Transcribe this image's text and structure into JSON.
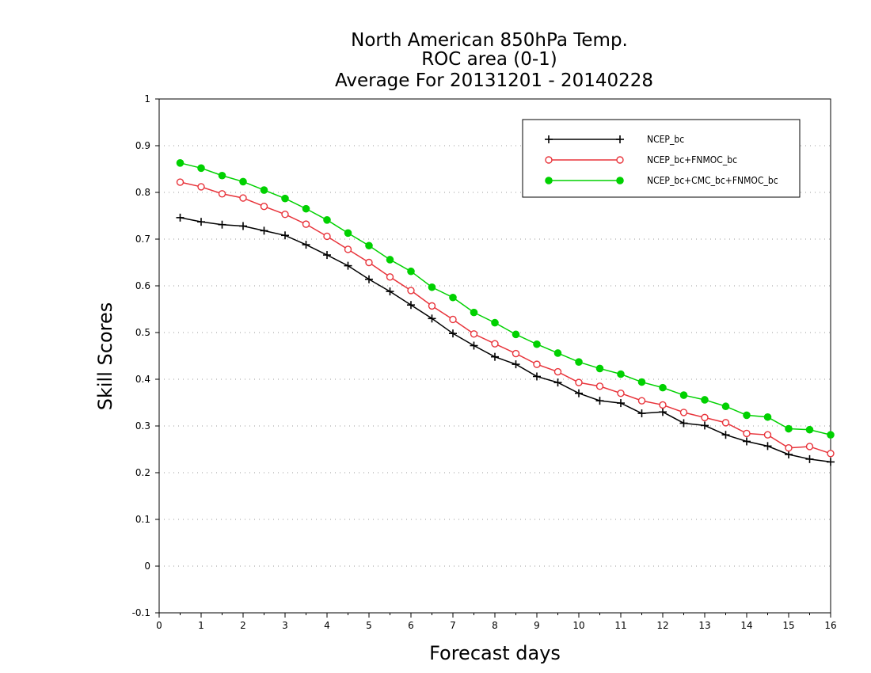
{
  "chart_data": {
    "type": "line",
    "title_lines": [
      "North American 850hPa Temp.",
      "ROC area (0-1)",
      "Average For 20131201 - 20140228"
    ],
    "xlabel": "Forecast days",
    "ylabel": "Skill Scores",
    "xlim": [
      0,
      16
    ],
    "ylim": [
      -0.1,
      1
    ],
    "x_ticks": [
      0,
      1,
      2,
      3,
      4,
      5,
      6,
      7,
      8,
      9,
      10,
      11,
      12,
      13,
      14,
      15,
      16
    ],
    "x_tick_labels": [
      "0",
      "1",
      "2",
      "3",
      "4",
      "5",
      "6",
      "7",
      "8",
      "9",
      "10",
      "11",
      "12",
      "13",
      "14",
      "15",
      "16"
    ],
    "y_ticks": [
      -0.1,
      0,
      0.1,
      0.2,
      0.3,
      0.4,
      0.5,
      0.6,
      0.7,
      0.8,
      0.9,
      1
    ],
    "y_tick_labels": [
      "-0.1",
      "0",
      "0.1",
      "0.2",
      "0.3",
      "0.4",
      "0.5",
      "0.6",
      "0.7",
      "0.8",
      "0.9",
      "1"
    ],
    "grid": "horizontal dotted",
    "legend_position": "top-right",
    "x": [
      0.5,
      1.0,
      1.5,
      2.0,
      2.5,
      3.0,
      3.5,
      4.0,
      4.5,
      5.0,
      5.5,
      6.0,
      6.5,
      7.0,
      7.5,
      8.0,
      8.5,
      9.0,
      9.5,
      10.0,
      10.5,
      11.0,
      11.5,
      12.0,
      12.5,
      13.0,
      13.5,
      14.0,
      14.5,
      15.0,
      15.5,
      16.0
    ],
    "series": [
      {
        "name": "NCEP_bc",
        "color": "#000000",
        "marker": "plus",
        "values": [
          0.746,
          0.737,
          0.731,
          0.728,
          0.718,
          0.708,
          0.688,
          0.666,
          0.643,
          0.614,
          0.588,
          0.559,
          0.53,
          0.498,
          0.472,
          0.448,
          0.432,
          0.406,
          0.393,
          0.37,
          0.354,
          0.349,
          0.327,
          0.33,
          0.306,
          0.301,
          0.281,
          0.267,
          0.257,
          0.239,
          0.229,
          0.223
        ]
      },
      {
        "name": "NCEP_bc+FNMOC_bc",
        "color": "#e8333a",
        "marker": "open-circle",
        "values": [
          0.822,
          0.812,
          0.797,
          0.788,
          0.77,
          0.753,
          0.732,
          0.706,
          0.678,
          0.65,
          0.619,
          0.59,
          0.557,
          0.528,
          0.497,
          0.476,
          0.455,
          0.432,
          0.416,
          0.393,
          0.385,
          0.37,
          0.354,
          0.345,
          0.329,
          0.318,
          0.307,
          0.284,
          0.281,
          0.253,
          0.256,
          0.241
        ]
      },
      {
        "name": "NCEP_bc+CMC_bc+FNMOC_bc",
        "color": "#00d100",
        "marker": "filled-circle",
        "values": [
          0.863,
          0.852,
          0.836,
          0.823,
          0.805,
          0.787,
          0.765,
          0.741,
          0.713,
          0.686,
          0.656,
          0.631,
          0.597,
          0.575,
          0.543,
          0.521,
          0.496,
          0.475,
          0.456,
          0.437,
          0.423,
          0.411,
          0.394,
          0.382,
          0.366,
          0.356,
          0.342,
          0.323,
          0.319,
          0.294,
          0.292,
          0.281
        ]
      }
    ]
  }
}
